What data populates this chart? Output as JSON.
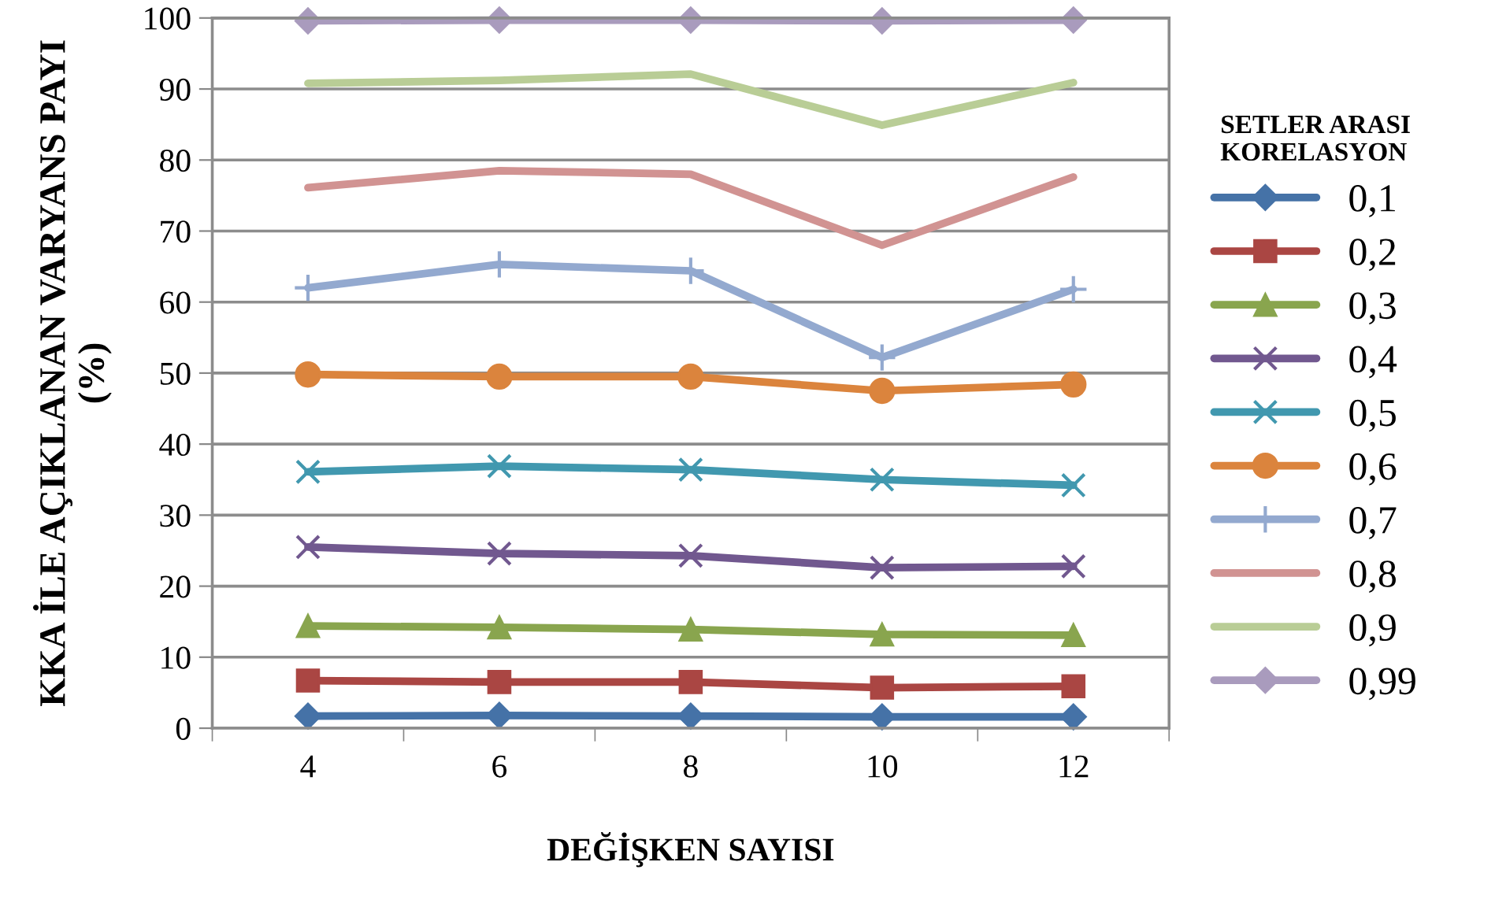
{
  "chart_data": {
    "type": "line",
    "xlabel": "DEĞİŞKEN SAYISI",
    "ylabel": "KKA İLE AÇIKLANAN VARYANS PAYI\n(%)",
    "legend_title": "SETLER ARASI\nKORELASYON",
    "categories": [
      "4",
      "6",
      "8",
      "10",
      "12"
    ],
    "ylim": [
      0,
      100
    ],
    "yticks": [
      0,
      10,
      20,
      30,
      40,
      50,
      60,
      70,
      80,
      90,
      100
    ],
    "grid": "y",
    "legend": "right",
    "series": [
      {
        "name": "0,1",
        "color": "#4572a7",
        "marker": "diamond",
        "values": [
          1.7,
          1.8,
          1.7,
          1.6,
          1.6
        ]
      },
      {
        "name": "0,2",
        "color": "#aa4643",
        "marker": "square",
        "values": [
          6.7,
          6.5,
          6.5,
          5.7,
          5.9
        ]
      },
      {
        "name": "0,3",
        "color": "#89a54e",
        "marker": "triangle",
        "values": [
          14.4,
          14.2,
          13.9,
          13.2,
          13.1
        ]
      },
      {
        "name": "0,4",
        "color": "#71588f",
        "marker": "cross",
        "values": [
          25.5,
          24.6,
          24.3,
          22.6,
          22.8
        ]
      },
      {
        "name": "0,5",
        "color": "#4198af",
        "marker": "cross",
        "values": [
          36.1,
          36.9,
          36.4,
          35.0,
          34.2
        ]
      },
      {
        "name": "0,6",
        "color": "#db843d",
        "marker": "circle",
        "values": [
          49.8,
          49.5,
          49.5,
          47.5,
          48.4
        ]
      },
      {
        "name": "0,7",
        "color": "#93a9cf",
        "marker": "plus",
        "values": [
          62.0,
          65.3,
          64.4,
          52.2,
          61.8
        ]
      },
      {
        "name": "0,8",
        "color": "#d19392",
        "marker": "none",
        "values": [
          76.1,
          78.5,
          78.0,
          68.0,
          77.6
        ]
      },
      {
        "name": "0,9",
        "color": "#b9cd96",
        "marker": "none",
        "values": [
          90.8,
          91.2,
          92.1,
          84.9,
          90.9
        ]
      },
      {
        "name": "0,99",
        "color": "#a99bbd",
        "marker": "diamond",
        "values": [
          99.6,
          99.7,
          99.7,
          99.6,
          99.7
        ]
      }
    ]
  }
}
